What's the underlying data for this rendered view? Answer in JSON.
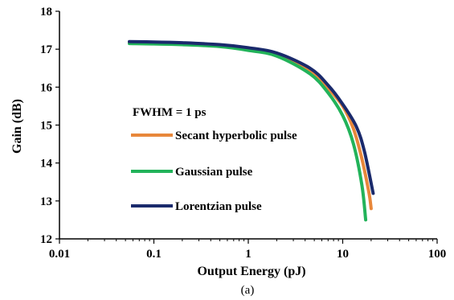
{
  "chart_data": {
    "type": "line",
    "title": "",
    "xlabel": "Output Energy (pJ)",
    "ylabel": "Gain (dB)",
    "xscale": "log",
    "xlim": [
      0.01,
      100
    ],
    "ylim": [
      12,
      18
    ],
    "xticks": [
      "0.01",
      "0.1",
      "1",
      "10",
      "100"
    ],
    "yticks": [
      "12",
      "13",
      "14",
      "15",
      "16",
      "17",
      "18"
    ],
    "grid": false,
    "legend_title": "FWHM = 1 ps",
    "legend_position": "center-left",
    "caption": "(a)",
    "series": [
      {
        "name": "Secant hyperbolic pulse",
        "color": "#E8873A",
        "x": [
          0.055,
          0.1,
          0.2,
          0.5,
          1,
          2,
          4.5,
          7,
          10,
          13,
          16,
          19,
          20
        ],
        "y": [
          17.17,
          17.16,
          17.14,
          17.09,
          17.0,
          16.85,
          16.42,
          15.97,
          15.5,
          14.9,
          14.1,
          13.2,
          12.8
        ]
      },
      {
        "name": "Gaussian pulse",
        "color": "#22B35A",
        "x": [
          0.055,
          0.1,
          0.2,
          0.5,
          1,
          2,
          4.5,
          7,
          10,
          13,
          16,
          17.5
        ],
        "y": [
          17.15,
          17.14,
          17.12,
          17.07,
          16.97,
          16.82,
          16.35,
          15.85,
          15.25,
          14.5,
          13.4,
          12.5
        ]
      },
      {
        "name": "Lorentzian pulse",
        "color": "#1A2A6C",
        "x": [
          0.055,
          0.1,
          0.2,
          0.5,
          1,
          2,
          4.5,
          7,
          10,
          14,
          17,
          21
        ],
        "y": [
          17.2,
          17.19,
          17.17,
          17.12,
          17.04,
          16.9,
          16.5,
          16.05,
          15.55,
          14.95,
          14.3,
          13.2
        ]
      }
    ]
  }
}
